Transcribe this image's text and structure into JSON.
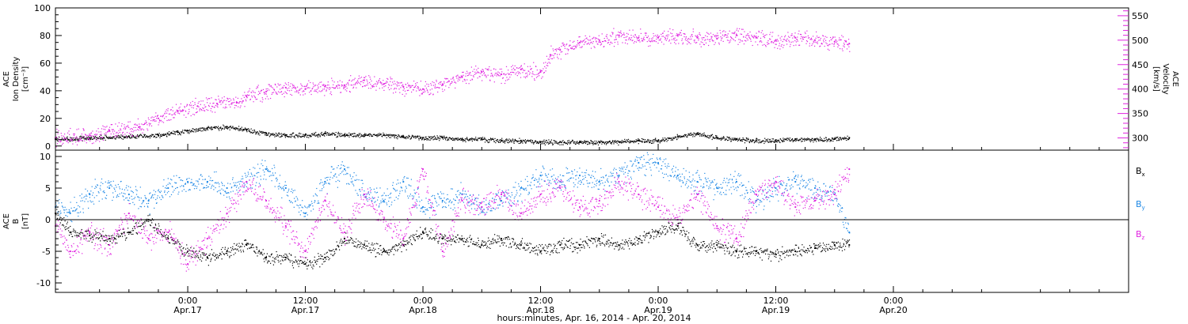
{
  "chart_data": [
    {
      "type": "scatter",
      "panel": "top",
      "xlabel": "hours:minutes, Apr. 16, 2014 - Apr. 20, 2014",
      "x_range_hours": [
        -13.5,
        96
      ],
      "x_ticks": [
        {
          "hour": 0,
          "time": "0:00",
          "date": "Apr.17"
        },
        {
          "hour": 12,
          "time": "12:00",
          "date": "Apr.17"
        },
        {
          "hour": 24,
          "time": "0:00",
          "date": "Apr.18"
        },
        {
          "hour": 36,
          "time": "12:00",
          "date": "Apr.18"
        },
        {
          "hour": 48,
          "time": "0:00",
          "date": "Apr.19"
        },
        {
          "hour": 60,
          "time": "12:00",
          "date": "Apr.19"
        },
        {
          "hour": 72,
          "time": "0:00",
          "date": "Apr.20"
        }
      ],
      "left_axis": {
        "label_lines": [
          "ACE",
          "Ion Density",
          "[cm⁻³]"
        ],
        "ylim": [
          -3,
          100
        ],
        "ticks": [
          "0",
          "20",
          "40",
          "60",
          "80",
          "100"
        ]
      },
      "right_axis": {
        "label_lines": [
          "ACE",
          "Velocity",
          "[km/s]"
        ],
        "ylim": [
          275,
          566
        ],
        "ticks": [
          "300",
          "350",
          "400",
          "450",
          "500",
          "550"
        ],
        "color": "#e024e0"
      },
      "series": [
        {
          "axis": "left",
          "color": "#000000",
          "points": [
            [
              -13.5,
              5
            ],
            [
              -10,
              6
            ],
            [
              -6,
              7
            ],
            [
              -3,
              8
            ],
            [
              -1,
              10
            ],
            [
              0,
              11
            ],
            [
              2,
              13
            ],
            [
              4,
              14
            ],
            [
              6,
              12
            ],
            [
              8,
              9
            ],
            [
              10,
              8
            ],
            [
              12,
              8
            ],
            [
              14,
              9
            ],
            [
              16,
              8
            ],
            [
              18,
              8
            ],
            [
              20,
              8
            ],
            [
              22,
              7
            ],
            [
              24,
              6
            ],
            [
              26,
              6
            ],
            [
              28,
              5
            ],
            [
              30,
              5
            ],
            [
              32,
              4
            ],
            [
              34,
              4
            ],
            [
              36,
              3
            ],
            [
              38,
              3
            ],
            [
              40,
              3
            ],
            [
              42,
              3
            ],
            [
              44,
              3
            ],
            [
              46,
              4
            ],
            [
              48,
              4
            ],
            [
              50,
              7
            ],
            [
              52,
              9
            ],
            [
              54,
              6
            ],
            [
              56,
              5
            ],
            [
              58,
              4
            ],
            [
              60,
              4
            ],
            [
              62,
              5
            ],
            [
              64,
              5
            ],
            [
              66,
              5
            ],
            [
              67.5,
              6
            ]
          ]
        },
        {
          "axis": "right",
          "color": "#e024e0",
          "points": [
            [
              -13.5,
              300
            ],
            [
              -10,
              305
            ],
            [
              -8,
              315
            ],
            [
              -5,
              322
            ],
            [
              -3,
              340
            ],
            [
              -1,
              355
            ],
            [
              1,
              365
            ],
            [
              3,
              370
            ],
            [
              5,
              372
            ],
            [
              6,
              385
            ],
            [
              8,
              395
            ],
            [
              10,
              403
            ],
            [
              12,
              400
            ],
            [
              14,
              405
            ],
            [
              16,
              408
            ],
            [
              18,
              418
            ],
            [
              20,
              410
            ],
            [
              22,
              405
            ],
            [
              24,
              400
            ],
            [
              26,
              410
            ],
            [
              28,
              425
            ],
            [
              30,
              435
            ],
            [
              32,
              430
            ],
            [
              34,
              440
            ],
            [
              36,
              435
            ],
            [
              37,
              470
            ],
            [
              38,
              480
            ],
            [
              40,
              495
            ],
            [
              42,
              500
            ],
            [
              44,
              510
            ],
            [
              46,
              505
            ],
            [
              48,
              505
            ],
            [
              50,
              510
            ],
            [
              52,
              505
            ],
            [
              54,
              503
            ],
            [
              56,
              510
            ],
            [
              58,
              505
            ],
            [
              60,
              500
            ],
            [
              62,
              505
            ],
            [
              64,
              500
            ],
            [
              66,
              497
            ],
            [
              67.5,
              493
            ]
          ]
        }
      ]
    },
    {
      "type": "scatter",
      "panel": "bottom",
      "left_axis": {
        "label_lines": [
          "ACE",
          "B",
          "[nT]"
        ],
        "ylim": [
          -11.5,
          11
        ],
        "ticks": [
          "-10",
          "-5",
          "0",
          "5",
          "10"
        ]
      },
      "zero_line": true,
      "series": [
        {
          "name": "Bx",
          "legend_main": "B",
          "legend_sub": "x",
          "color": "#000000",
          "points": [
            [
              -13.5,
              1
            ],
            [
              -12,
              -2
            ],
            [
              -10,
              -2.5
            ],
            [
              -8,
              -3
            ],
            [
              -6,
              -2
            ],
            [
              -4,
              0
            ],
            [
              -2,
              -3
            ],
            [
              0,
              -5
            ],
            [
              2,
              -6
            ],
            [
              4,
              -5
            ],
            [
              6,
              -4
            ],
            [
              8,
              -6
            ],
            [
              10,
              -6
            ],
            [
              12,
              -7
            ],
            [
              14,
              -6
            ],
            [
              16,
              -3
            ],
            [
              18,
              -4
            ],
            [
              20,
              -5
            ],
            [
              22,
              -4
            ],
            [
              24,
              -2
            ],
            [
              26,
              -3
            ],
            [
              28,
              -3
            ],
            [
              30,
              -4
            ],
            [
              32,
              -3
            ],
            [
              34,
              -4
            ],
            [
              36,
              -5
            ],
            [
              38,
              -4
            ],
            [
              40,
              -4
            ],
            [
              42,
              -3
            ],
            [
              44,
              -4
            ],
            [
              46,
              -3
            ],
            [
              48,
              -2
            ],
            [
              50,
              -1
            ],
            [
              52,
              -4
            ],
            [
              54,
              -4
            ],
            [
              56,
              -5
            ],
            [
              58,
              -5
            ],
            [
              60,
              -5.5
            ],
            [
              62,
              -5
            ],
            [
              64,
              -4.5
            ],
            [
              66,
              -4
            ],
            [
              67.5,
              -4
            ]
          ]
        },
        {
          "name": "By",
          "legend_main": "B",
          "legend_sub": "y",
          "color": "#1e88e5",
          "points": [
            [
              -13.5,
              2
            ],
            [
              -12,
              1
            ],
            [
              -10,
              4
            ],
            [
              -8,
              5
            ],
            [
              -6,
              4
            ],
            [
              -4,
              3
            ],
            [
              -2,
              5
            ],
            [
              0,
              6
            ],
            [
              2,
              6
            ],
            [
              4,
              5
            ],
            [
              6,
              6
            ],
            [
              8,
              8
            ],
            [
              10,
              5
            ],
            [
              12,
              1
            ],
            [
              14,
              6
            ],
            [
              16,
              8
            ],
            [
              18,
              4
            ],
            [
              20,
              3
            ],
            [
              22,
              6
            ],
            [
              24,
              2
            ],
            [
              26,
              3
            ],
            [
              28,
              4
            ],
            [
              30,
              2
            ],
            [
              32,
              3
            ],
            [
              34,
              5
            ],
            [
              36,
              7
            ],
            [
              38,
              6
            ],
            [
              40,
              7
            ],
            [
              42,
              6
            ],
            [
              44,
              7
            ],
            [
              46,
              9
            ],
            [
              48,
              9
            ],
            [
              50,
              7
            ],
            [
              52,
              6
            ],
            [
              54,
              5
            ],
            [
              56,
              6
            ],
            [
              58,
              3
            ],
            [
              60,
              5
            ],
            [
              62,
              6
            ],
            [
              64,
              5
            ],
            [
              66,
              4
            ],
            [
              67.5,
              -2
            ]
          ]
        },
        {
          "name": "Bz",
          "legend_main": "B",
          "legend_sub": "z",
          "color": "#e024e0",
          "points": [
            [
              -13.5,
              -1
            ],
            [
              -12,
              -5
            ],
            [
              -10,
              -2
            ],
            [
              -8,
              -4
            ],
            [
              -6,
              1
            ],
            [
              -4,
              -3
            ],
            [
              -2,
              -2
            ],
            [
              0,
              -7
            ],
            [
              2,
              -3
            ],
            [
              4,
              1
            ],
            [
              6,
              6
            ],
            [
              8,
              3
            ],
            [
              10,
              -1
            ],
            [
              12,
              -5
            ],
            [
              14,
              3
            ],
            [
              16,
              -2
            ],
            [
              18,
              4
            ],
            [
              20,
              0
            ],
            [
              22,
              -3
            ],
            [
              24,
              8
            ],
            [
              26,
              -5
            ],
            [
              28,
              3
            ],
            [
              30,
              2
            ],
            [
              32,
              4
            ],
            [
              34,
              1
            ],
            [
              36,
              4
            ],
            [
              38,
              5
            ],
            [
              40,
              2
            ],
            [
              42,
              3
            ],
            [
              44,
              6
            ],
            [
              46,
              4
            ],
            [
              48,
              2
            ],
            [
              50,
              0
            ],
            [
              52,
              4
            ],
            [
              54,
              -1
            ],
            [
              56,
              -3
            ],
            [
              58,
              4
            ],
            [
              60,
              6
            ],
            [
              62,
              2
            ],
            [
              64,
              3
            ],
            [
              66,
              4
            ],
            [
              67.5,
              8
            ]
          ]
        }
      ]
    }
  ]
}
